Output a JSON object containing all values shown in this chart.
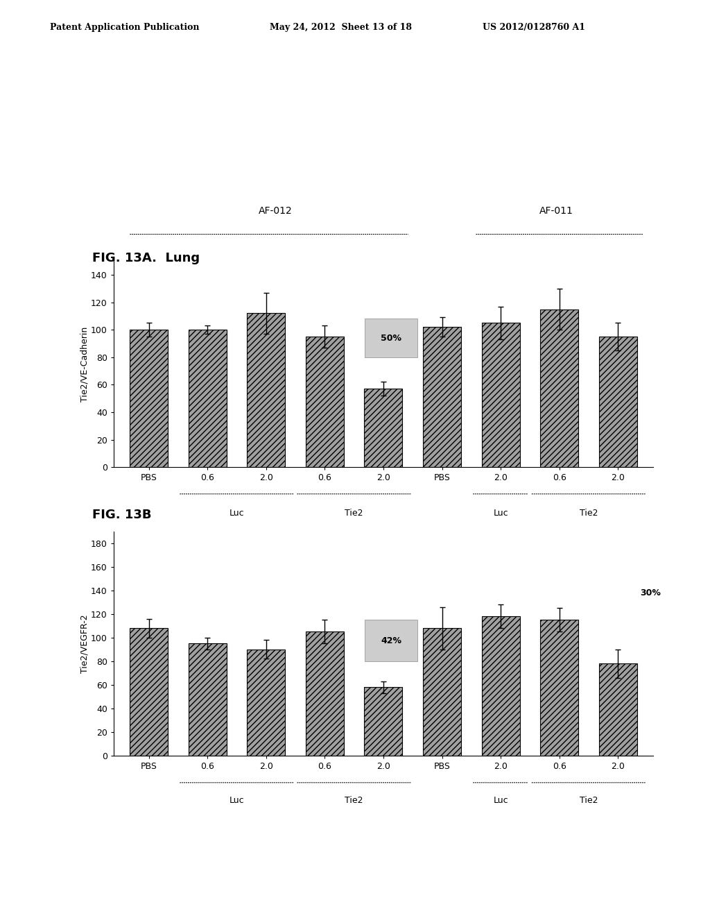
{
  "header_left": "Patent Application Publication",
  "header_mid": "May 24, 2012  Sheet 13 of 18",
  "header_right": "US 2012/0128760 A1",
  "fig_a_title": "FIG. 13A.  Lung",
  "fig_b_title": "FIG. 13B",
  "panel_a": {
    "ylabel": "Tie2/VE-Cadherin",
    "ylim": [
      0,
      150
    ],
    "yticks": [
      0,
      20,
      40,
      60,
      80,
      100,
      120,
      140
    ],
    "group1_label": "AF-012",
    "group2_label": "AF-011",
    "bars": [
      100,
      100,
      112,
      95,
      57,
      102,
      105,
      115,
      95
    ],
    "errors": [
      5,
      3,
      15,
      8,
      5,
      7,
      12,
      15,
      10
    ],
    "xlabels": [
      "PBS",
      "0.6",
      "2.0",
      "0.6",
      "2.0",
      "PBS",
      "2.0",
      "0.6",
      "2.0"
    ]
  },
  "panel_b": {
    "ylabel": "Tie2/VEGFR-2",
    "ylim": [
      0,
      190
    ],
    "yticks": [
      0,
      20,
      40,
      60,
      80,
      100,
      120,
      140,
      160,
      180
    ],
    "bars": [
      108,
      95,
      90,
      105,
      58,
      108,
      118,
      115,
      78
    ],
    "errors": [
      8,
      5,
      8,
      10,
      5,
      18,
      10,
      10,
      12
    ],
    "xlabels": [
      "PBS",
      "0.6",
      "2.0",
      "0.6",
      "2.0",
      "PBS",
      "2.0",
      "0.6",
      "2.0"
    ]
  },
  "bar_color": "#a0a0a0",
  "background_color": "#ffffff"
}
